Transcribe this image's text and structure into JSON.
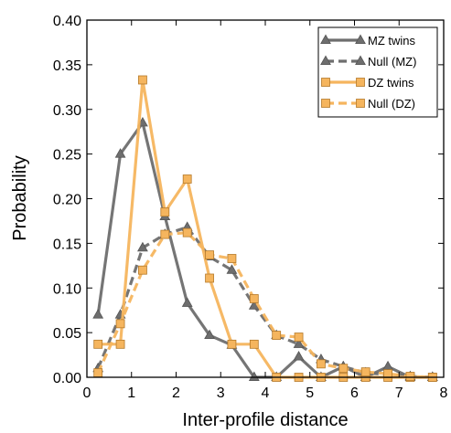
{
  "chart_data": {
    "type": "line",
    "title": "",
    "xlabel": "Inter-profile distance",
    "ylabel": "Probability",
    "xlim": [
      0,
      8
    ],
    "ylim": [
      0,
      0.4
    ],
    "xticks": [
      "0",
      "1",
      "2",
      "3",
      "4",
      "5",
      "6",
      "7",
      "8"
    ],
    "yticks": [
      "0.00",
      "0.05",
      "0.10",
      "0.15",
      "0.20",
      "0.25",
      "0.30",
      "0.35",
      "0.40"
    ],
    "grid": false,
    "legend_position": "top-right",
    "series": [
      {
        "name": "MZ twins",
        "color": "#6e6e6e",
        "marker": "triangle",
        "linestyle": "solid",
        "x": [
          0.25,
          0.75,
          1.25,
          1.75,
          2.25,
          2.75,
          3.25,
          3.75,
          4.25,
          4.75,
          5.25,
          5.75,
          6.25,
          6.75,
          7.25,
          7.75
        ],
        "y": [
          0.07,
          0.25,
          0.285,
          0.18,
          0.083,
          0.047,
          0.036,
          0.0,
          0.0,
          0.023,
          0.0,
          0.012,
          0.0,
          0.012,
          0.0,
          0.0
        ]
      },
      {
        "name": "Null (MZ)",
        "color": "#6e6e6e",
        "marker": "triangle",
        "linestyle": "dashed",
        "x": [
          0.25,
          0.75,
          1.25,
          1.75,
          2.25,
          2.75,
          3.25,
          3.75,
          4.25,
          4.75,
          5.25,
          5.75,
          6.25,
          6.75,
          7.25,
          7.75
        ],
        "y": [
          0.01,
          0.07,
          0.145,
          0.16,
          0.168,
          0.135,
          0.12,
          0.08,
          0.047,
          0.037,
          0.02,
          0.012,
          0.005,
          0.003,
          0.001,
          0.0
        ]
      },
      {
        "name": "DZ twins",
        "color": "#f5b55e",
        "marker": "square",
        "linestyle": "solid",
        "x": [
          0.25,
          0.75,
          1.25,
          1.75,
          2.25,
          2.75,
          3.25,
          3.75,
          4.25,
          4.75,
          5.25,
          5.75,
          6.25,
          6.75,
          7.25,
          7.75
        ],
        "y": [
          0.037,
          0.037,
          0.333,
          0.185,
          0.222,
          0.111,
          0.037,
          0.037,
          0.0,
          0.0,
          0.0,
          0.0,
          0.0,
          0.0,
          0.0,
          0.0
        ]
      },
      {
        "name": "Null (DZ)",
        "color": "#f5b55e",
        "marker": "square",
        "linestyle": "dashed",
        "x": [
          0.25,
          0.75,
          1.25,
          1.75,
          2.25,
          2.75,
          3.25,
          3.75,
          4.25,
          4.75,
          5.25,
          5.75,
          6.25,
          6.75,
          7.25,
          7.75
        ],
        "y": [
          0.005,
          0.06,
          0.12,
          0.16,
          0.162,
          0.137,
          0.133,
          0.088,
          0.047,
          0.045,
          0.015,
          0.01,
          0.006,
          0.004,
          0.001,
          0.0
        ]
      }
    ]
  }
}
